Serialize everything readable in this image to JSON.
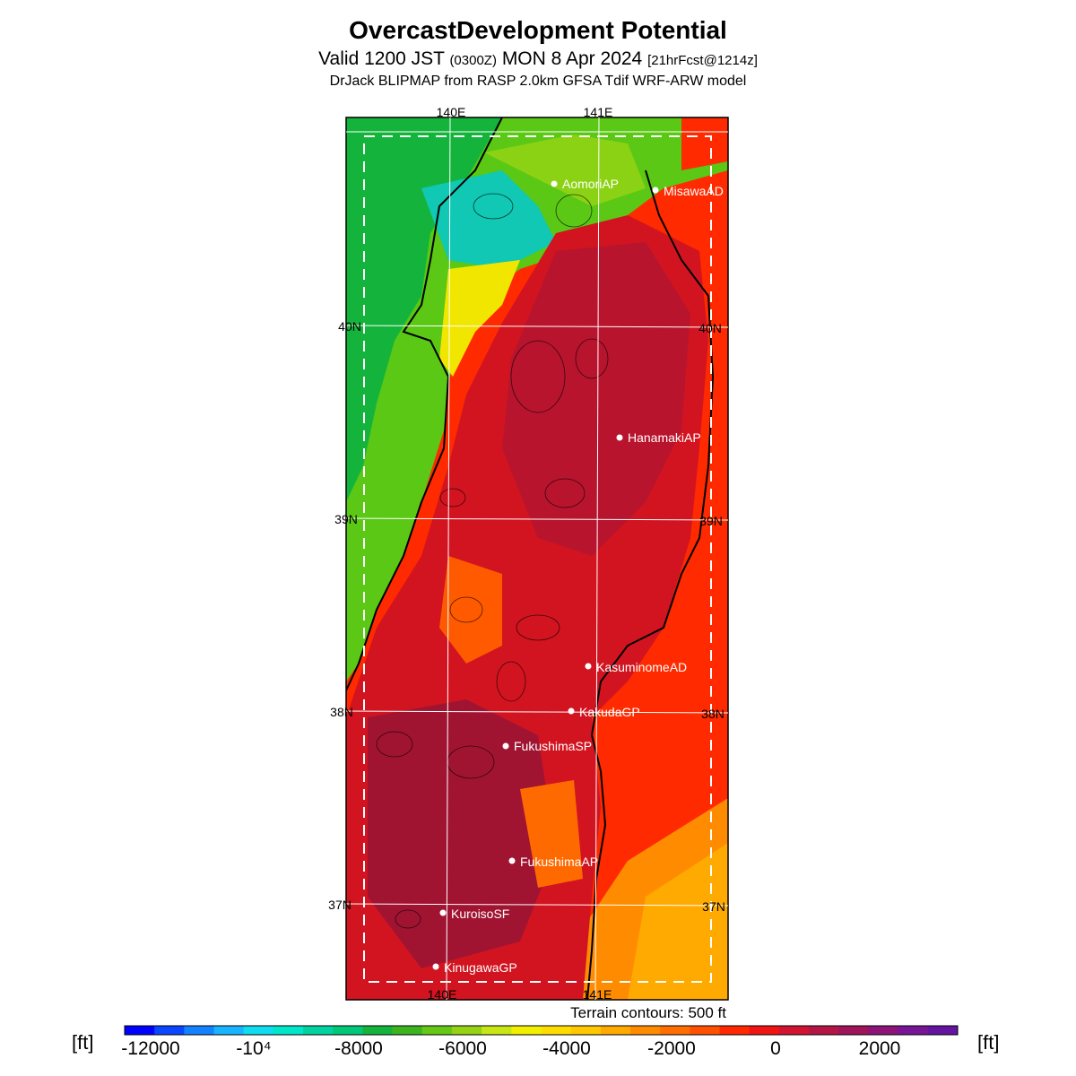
{
  "title": "OvercastDevelopment Potential",
  "subtitle": {
    "valid": "Valid 1200 JST",
    "utc": "(0300Z)",
    "date": "MON 8 Apr 2024",
    "forecast": "[21hrFcst@1214z]"
  },
  "model_line": "DrJack BLIPMAP from RASP 2.0km GFSA Tdif WRF-ARW model",
  "map": {
    "lon_labels": [
      "140E",
      "141E"
    ],
    "lat_labels": [
      "40N",
      "39N",
      "38N",
      "37N"
    ],
    "stations": [
      {
        "name": "AomoriAP",
        "label": "AomoriAP"
      },
      {
        "name": "MisawaAD",
        "label": "MisawaAD"
      },
      {
        "name": "HanamakiAP",
        "label": "HanamakiAP"
      },
      {
        "name": "KasuminomeAD",
        "label": "KasuminomeAD"
      },
      {
        "name": "KakudaGP",
        "label": "KakudaGP"
      },
      {
        "name": "FukushimaSP",
        "label": "FukushimaSP"
      },
      {
        "name": "FukushimaAP",
        "label": "FukushimaAP"
      },
      {
        "name": "KuroisoSF",
        "label": "KuroisoSF"
      },
      {
        "name": "KinugawaGP",
        "label": "KinugawaGP"
      }
    ],
    "terrain_note": "Terrain contours: 500 ft"
  },
  "colorbar": {
    "unit": "[ft]",
    "tick_labels": [
      "-12000",
      "-10⁴",
      "-8000",
      "-6000",
      "-4000",
      "-2000",
      "0",
      "2000"
    ],
    "colors": [
      "#0000ff",
      "#0a46ff",
      "#1282ff",
      "#18b4ff",
      "#10dcf0",
      "#00e6c8",
      "#00d2a0",
      "#00c878",
      "#14b43c",
      "#3cb41e",
      "#64c814",
      "#96d214",
      "#c8e614",
      "#f0f000",
      "#ffdc00",
      "#ffc800",
      "#ffaa00",
      "#ff8c00",
      "#ff6e00",
      "#ff5000",
      "#ff2800",
      "#f01414",
      "#d21432",
      "#b41446",
      "#a0145a",
      "#8c1478",
      "#781496",
      "#6414a0"
    ]
  }
}
